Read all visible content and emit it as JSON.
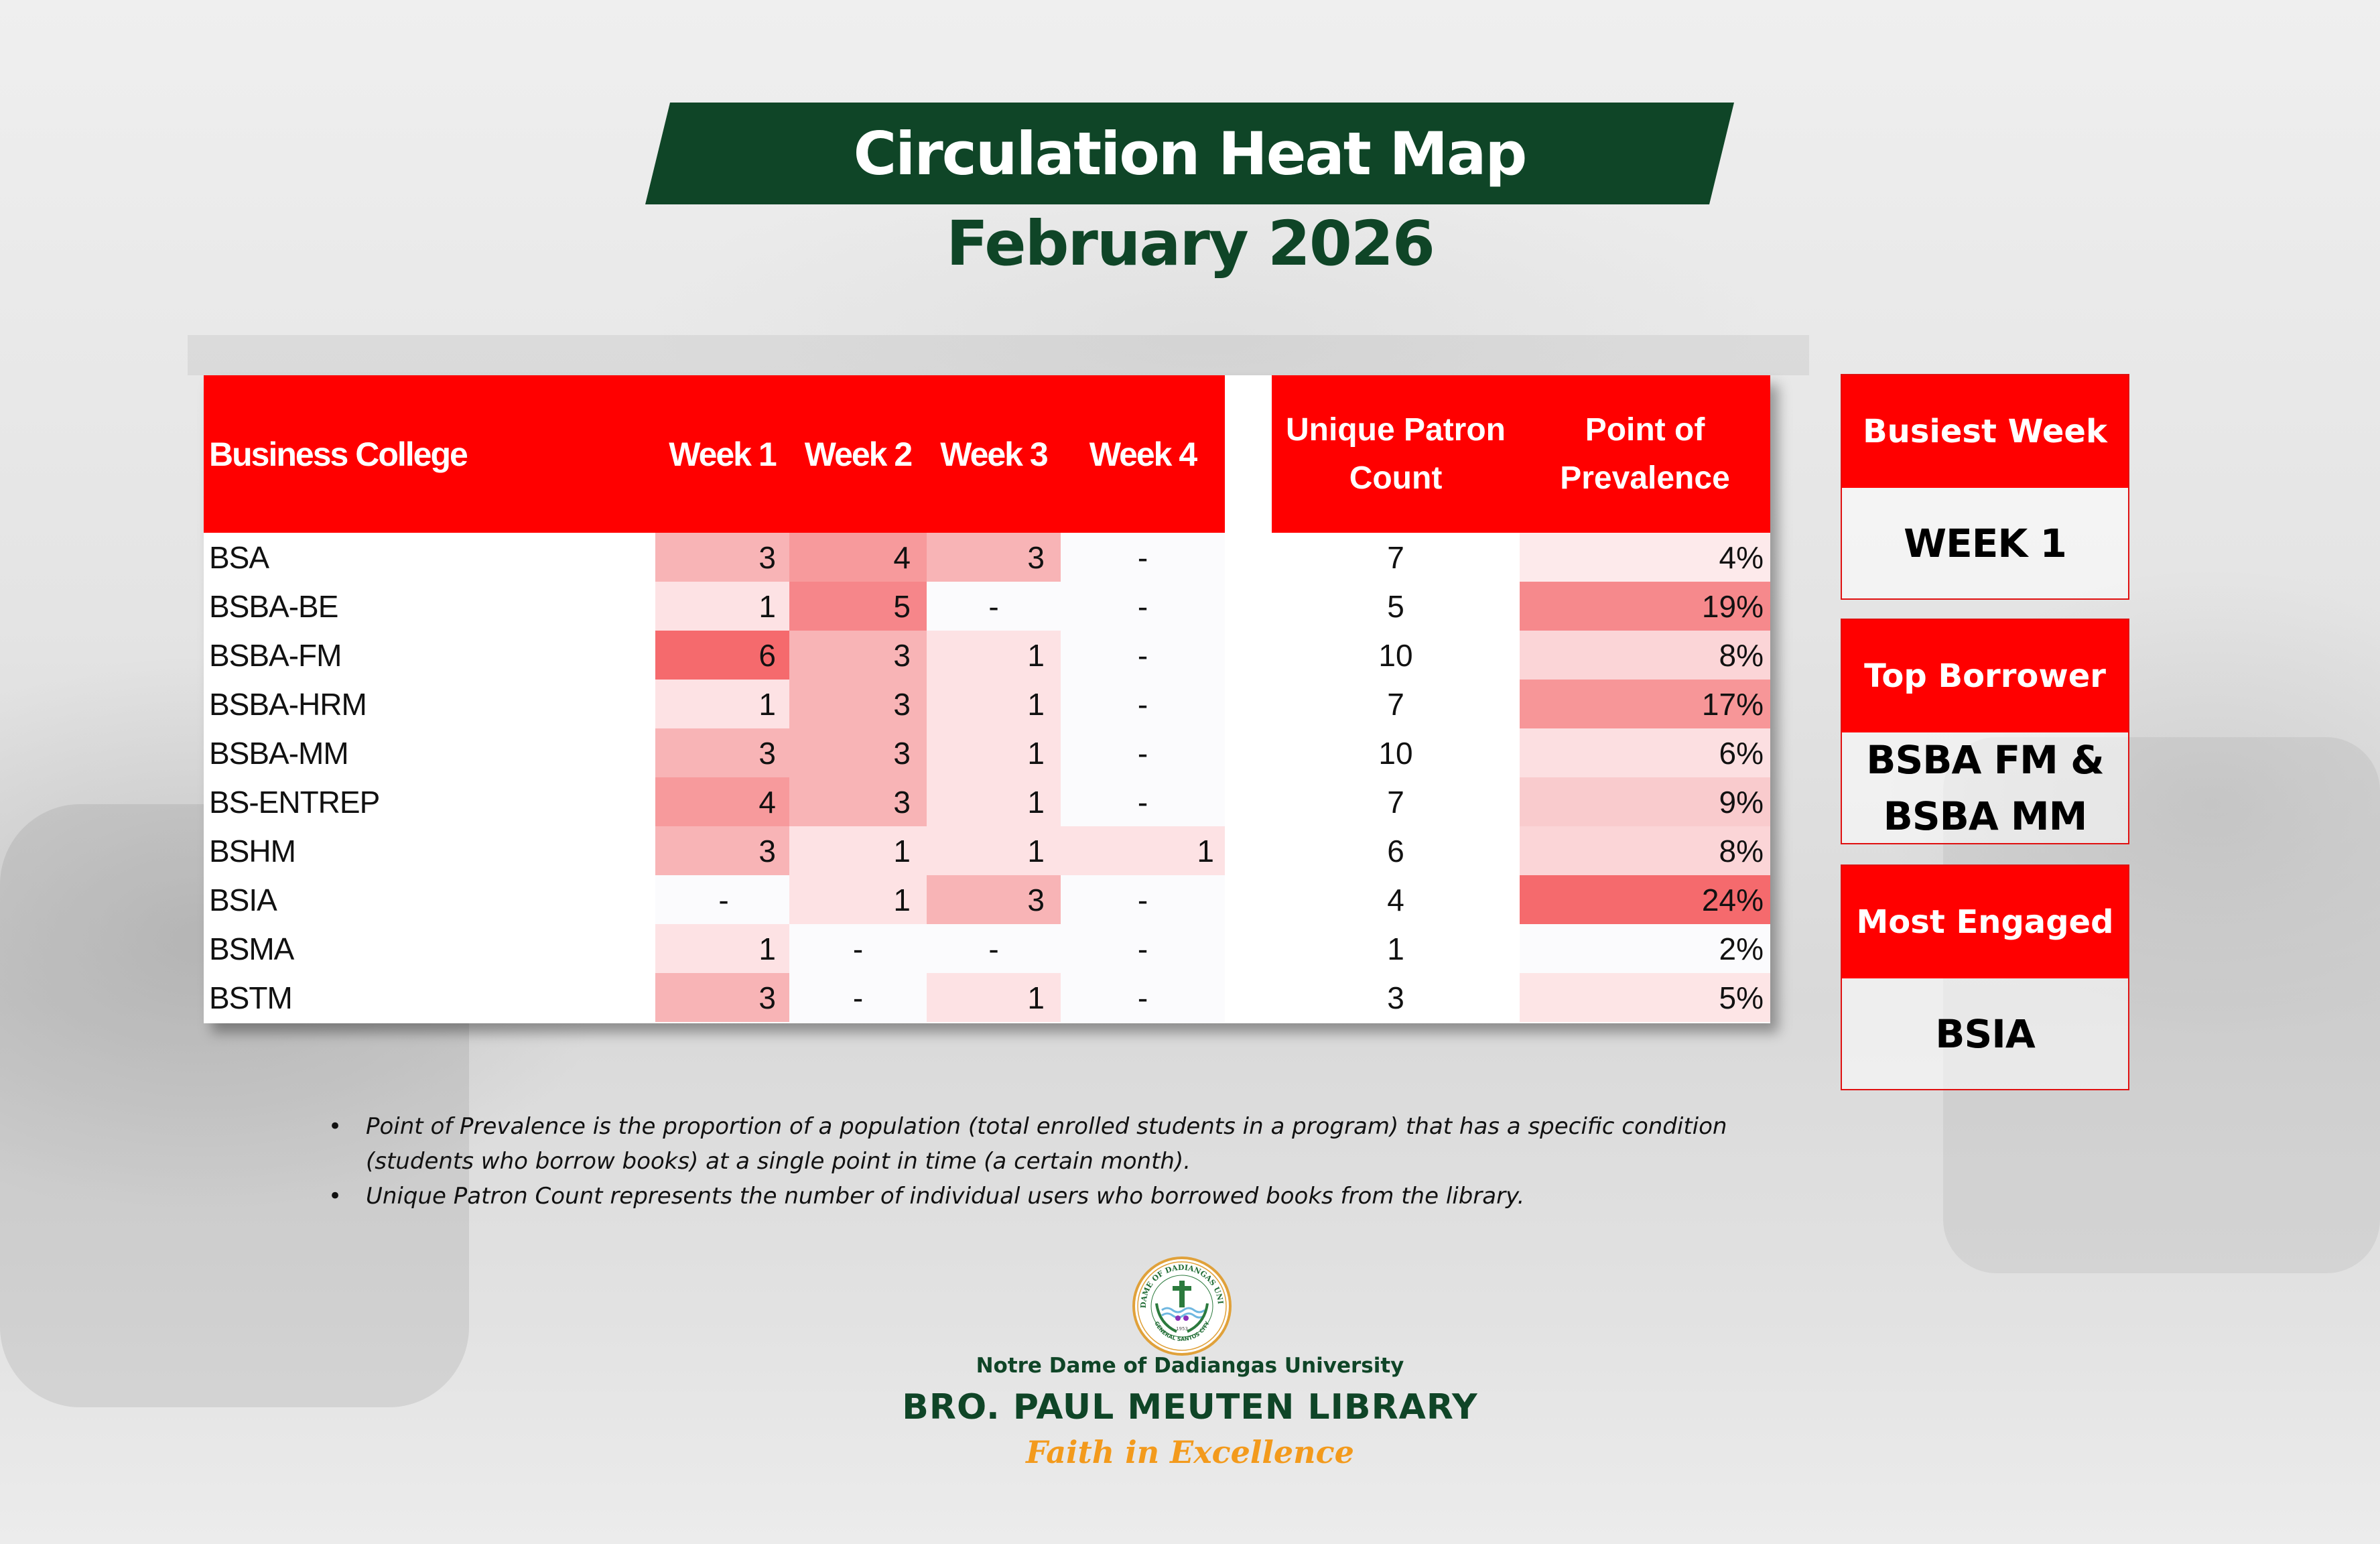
{
  "header": {
    "title": "Circulation Heat Map",
    "subtitle": "February 2026"
  },
  "table": {
    "columns": {
      "college": "Business College",
      "week1": "Week 1",
      "week2": "Week 2",
      "week3": "Week 3",
      "week4": "Week 4",
      "unique_patron_line1": "Unique Patron",
      "unique_patron_line2": "Count",
      "prevalence_line1": "Point of",
      "prevalence_line2": "Prevalence"
    },
    "rows": [
      {
        "college": "BSA",
        "w1": "3",
        "w2": "4",
        "w3": "3",
        "w4": "-",
        "upc": "7",
        "pop": "4%"
      },
      {
        "college": "BSBA-BE",
        "w1": "1",
        "w2": "5",
        "w3": "-",
        "w4": "-",
        "upc": "5",
        "pop": "19%"
      },
      {
        "college": "BSBA-FM",
        "w1": "6",
        "w2": "3",
        "w3": "1",
        "w4": "-",
        "upc": "10",
        "pop": "8%"
      },
      {
        "college": "BSBA-HRM",
        "w1": "1",
        "w2": "3",
        "w3": "1",
        "w4": "-",
        "upc": "7",
        "pop": "17%"
      },
      {
        "college": "BSBA-MM",
        "w1": "3",
        "w2": "3",
        "w3": "1",
        "w4": "-",
        "upc": "10",
        "pop": "6%"
      },
      {
        "college": "BS-ENTREP",
        "w1": "4",
        "w2": "3",
        "w3": "1",
        "w4": "-",
        "upc": "7",
        "pop": "9%"
      },
      {
        "college": "BSHM",
        "w1": "3",
        "w2": "1",
        "w3": "1",
        "w4": "1",
        "upc": "6",
        "pop": "8%"
      },
      {
        "college": "BSIA",
        "w1": "-",
        "w2": "1",
        "w3": "3",
        "w4": "-",
        "upc": "4",
        "pop": "24%"
      },
      {
        "college": "BSMA",
        "w1": "1",
        "w2": "-",
        "w3": "-",
        "w4": "-",
        "upc": "1",
        "pop": "2%"
      },
      {
        "college": "BSTM",
        "w1": "3",
        "w2": "-",
        "w3": "1",
        "w4": "-",
        "upc": "3",
        "pop": "5%"
      }
    ]
  },
  "highlights": [
    {
      "label": "Busiest Week",
      "value": "WEEK 1"
    },
    {
      "label": "Top Borrower",
      "value_line1": "BSBA FM &",
      "value_line2": "BSBA MM"
    },
    {
      "label": "Most Engaged",
      "value": "BSIA"
    }
  ],
  "notes": [
    "Point of Prevalence is the proportion of a population (total enrolled students in a program) that has a specific condition (students who borrow books) at a single point in time (a certain month).",
    "Unique Patron Count represents the number of individual users who borrowed books from the library."
  ],
  "footer": {
    "logo_ring_text": "NOTRE DAME OF DADIANGAS UNIVERSITY",
    "logo_bottom_text": "GENERAL SANTOS CITY",
    "logo_year": "1953",
    "university": "Notre Dame of Dadiangas University",
    "library": "BRO. PAUL MEUTEN LIBRARY",
    "motto": "Faith in Excellence"
  },
  "colors": {
    "brand_green": "#0f4527",
    "header_red": "#ff0000",
    "motto_orange": "#f39a1c",
    "heat_scale": {
      "empty": "#fbfbfd",
      "1": "#fde2e4",
      "3": "#f8b4b6",
      "4": "#f79a9c",
      "5": "#f6868a",
      "6": "#f56a6d"
    }
  },
  "chart_data": {
    "type": "heatmap",
    "title": "Circulation Heat Map",
    "subtitle": "February 2026",
    "x": [
      "Week 1",
      "Week 2",
      "Week 3",
      "Week 4"
    ],
    "y": [
      "BSA",
      "BSBA-BE",
      "BSBA-FM",
      "BSBA-HRM",
      "BSBA-MM",
      "BS-ENTREP",
      "BSHM",
      "BSIA",
      "BSMA",
      "BSTM"
    ],
    "values": [
      [
        3,
        4,
        3,
        null
      ],
      [
        1,
        5,
        null,
        null
      ],
      [
        6,
        3,
        1,
        null
      ],
      [
        1,
        3,
        1,
        null
      ],
      [
        3,
        3,
        1,
        null
      ],
      [
        4,
        3,
        1,
        null
      ],
      [
        3,
        1,
        1,
        1
      ],
      [
        null,
        1,
        3,
        null
      ],
      [
        1,
        null,
        null,
        null
      ],
      [
        3,
        null,
        1,
        null
      ]
    ],
    "unique_patron_count": [
      7,
      5,
      10,
      7,
      10,
      7,
      6,
      4,
      1,
      3
    ],
    "point_of_prevalence_pct": [
      4,
      19,
      8,
      17,
      6,
      9,
      8,
      24,
      2,
      5
    ],
    "xlabel": "Week",
    "ylabel": "Business College"
  }
}
